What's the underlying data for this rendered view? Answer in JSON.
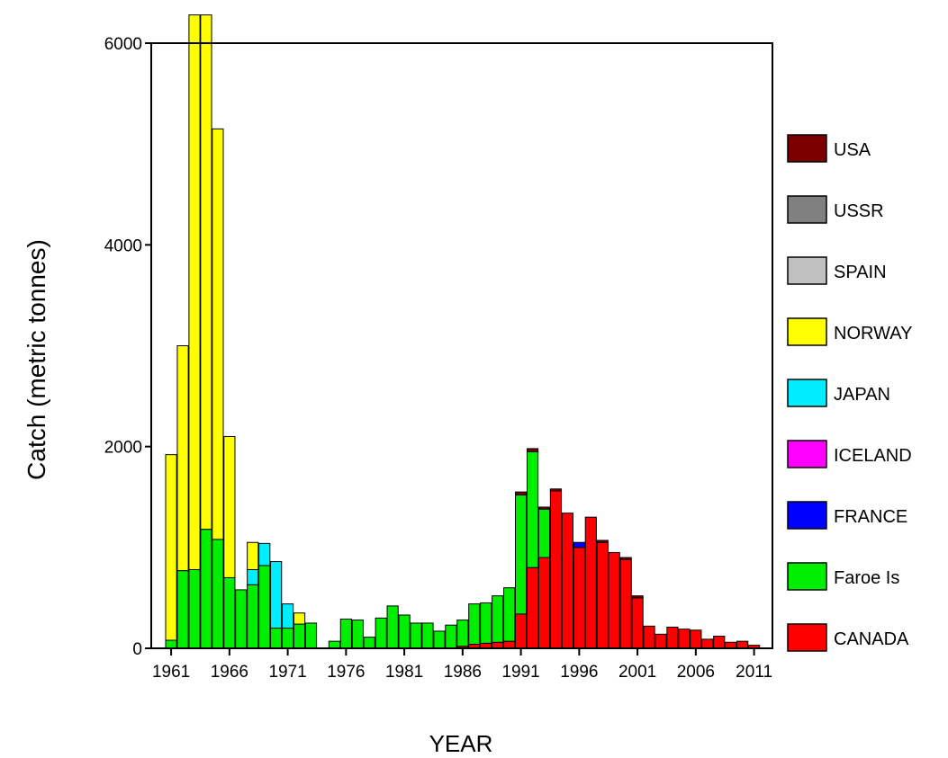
{
  "chart_data": {
    "type": "bar",
    "stacked": true,
    "xlabel": "YEAR",
    "ylabel": "Catch (metric tonnes)",
    "ylim": [
      0,
      6000
    ],
    "yticks": [
      0,
      2000,
      4000,
      6000
    ],
    "xticks": [
      1961,
      1966,
      1971,
      1976,
      1981,
      1986,
      1991,
      1996,
      2001,
      2006,
      2011
    ],
    "grid": false,
    "legend_position": "right",
    "categories": [
      1961,
      1962,
      1963,
      1964,
      1965,
      1966,
      1967,
      1968,
      1969,
      1970,
      1971,
      1972,
      1973,
      1974,
      1975,
      1976,
      1977,
      1978,
      1979,
      1980,
      1981,
      1982,
      1983,
      1984,
      1985,
      1986,
      1987,
      1988,
      1989,
      1990,
      1991,
      1992,
      1993,
      1994,
      1995,
      1996,
      1997,
      1998,
      1999,
      2000,
      2001,
      2002,
      2003,
      2004,
      2005,
      2006,
      2007,
      2008,
      2009,
      2010,
      2011
    ],
    "series": [
      {
        "name": "CANADA",
        "color": "#ff0000",
        "values": [
          0,
          0,
          0,
          0,
          0,
          0,
          0,
          0,
          0,
          0,
          0,
          0,
          0,
          0,
          0,
          0,
          0,
          0,
          0,
          0,
          0,
          0,
          0,
          0,
          0,
          20,
          40,
          50,
          60,
          70,
          340,
          800,
          900,
          1560,
          1340,
          1000,
          1300,
          1050,
          950,
          880,
          500,
          220,
          140,
          210,
          190,
          180,
          90,
          120,
          60,
          70,
          30
        ]
      },
      {
        "name": "Faroe Is",
        "color": "#00ee00",
        "values": [
          80,
          770,
          780,
          1180,
          1080,
          700,
          580,
          630,
          820,
          200,
          200,
          240,
          250,
          0,
          70,
          290,
          280,
          110,
          300,
          420,
          330,
          250,
          250,
          170,
          230,
          260,
          400,
          400,
          460,
          530,
          1180,
          1150,
          480,
          0,
          0,
          0,
          0,
          0,
          0,
          0,
          0,
          0,
          0,
          0,
          0,
          0,
          0,
          0,
          0,
          0,
          0
        ]
      },
      {
        "name": "FRANCE",
        "color": "#0000ff",
        "values": [
          0,
          0,
          0,
          0,
          0,
          0,
          0,
          0,
          0,
          0,
          0,
          0,
          0,
          0,
          0,
          0,
          0,
          0,
          0,
          0,
          0,
          0,
          0,
          0,
          0,
          0,
          0,
          0,
          0,
          0,
          0,
          0,
          0,
          0,
          0,
          50,
          0,
          0,
          0,
          0,
          0,
          0,
          0,
          0,
          0,
          0,
          0,
          0,
          0,
          0,
          0
        ]
      },
      {
        "name": "ICELAND",
        "color": "#ff00ff",
        "values": [
          0,
          0,
          0,
          0,
          0,
          0,
          0,
          0,
          0,
          0,
          0,
          0,
          0,
          0,
          0,
          0,
          0,
          0,
          0,
          0,
          0,
          0,
          0,
          0,
          0,
          0,
          0,
          0,
          0,
          0,
          0,
          0,
          0,
          0,
          0,
          0,
          0,
          0,
          0,
          0,
          0,
          0,
          0,
          0,
          0,
          0,
          0,
          0,
          0,
          0,
          0
        ]
      },
      {
        "name": "JAPAN",
        "color": "#00eeff",
        "values": [
          0,
          0,
          0,
          0,
          0,
          0,
          0,
          150,
          220,
          660,
          240,
          0,
          0,
          0,
          0,
          0,
          0,
          0,
          0,
          0,
          0,
          0,
          0,
          0,
          0,
          0,
          0,
          0,
          0,
          0,
          0,
          0,
          0,
          0,
          0,
          0,
          0,
          0,
          0,
          0,
          0,
          0,
          0,
          0,
          0,
          0,
          0,
          0,
          0,
          0,
          0
        ]
      },
      {
        "name": "NORWAY",
        "color": "#ffff00",
        "values": [
          1840,
          2230,
          5500,
          5100,
          4070,
          1400,
          0,
          270,
          0,
          0,
          0,
          110,
          0,
          0,
          0,
          0,
          0,
          0,
          0,
          0,
          0,
          0,
          0,
          0,
          0,
          0,
          0,
          0,
          0,
          0,
          0,
          0,
          0,
          0,
          0,
          0,
          0,
          0,
          0,
          0,
          0,
          0,
          0,
          0,
          0,
          0,
          0,
          0,
          0,
          0,
          0
        ]
      },
      {
        "name": "SPAIN",
        "color": "#c0c0c0",
        "values": [
          0,
          0,
          0,
          0,
          0,
          0,
          0,
          0,
          0,
          0,
          0,
          0,
          0,
          0,
          0,
          0,
          0,
          0,
          0,
          0,
          0,
          0,
          0,
          0,
          0,
          0,
          0,
          0,
          0,
          0,
          0,
          0,
          0,
          0,
          0,
          0,
          0,
          0,
          0,
          0,
          0,
          0,
          0,
          0,
          0,
          0,
          0,
          0,
          0,
          0,
          0
        ]
      },
      {
        "name": "USSR",
        "color": "#808080",
        "values": [
          0,
          0,
          0,
          0,
          0,
          0,
          0,
          0,
          0,
          0,
          0,
          0,
          0,
          0,
          0,
          0,
          0,
          0,
          0,
          0,
          0,
          0,
          0,
          0,
          0,
          0,
          0,
          0,
          0,
          0,
          0,
          0,
          0,
          0,
          0,
          0,
          0,
          0,
          0,
          0,
          0,
          0,
          0,
          0,
          0,
          0,
          0,
          0,
          0,
          0,
          0
        ]
      },
      {
        "name": "USA",
        "color": "#7a0000",
        "values": [
          0,
          0,
          0,
          0,
          0,
          0,
          0,
          0,
          0,
          0,
          0,
          0,
          0,
          0,
          0,
          0,
          0,
          0,
          0,
          0,
          0,
          0,
          0,
          0,
          0,
          0,
          0,
          0,
          0,
          0,
          30,
          30,
          20,
          20,
          0,
          0,
          0,
          20,
          0,
          20,
          20,
          0,
          0,
          0,
          0,
          0,
          0,
          0,
          0,
          0,
          0
        ]
      }
    ],
    "legend_order": [
      "USA",
      "USSR",
      "SPAIN",
      "NORWAY",
      "JAPAN",
      "ICELAND",
      "FRANCE",
      "Faroe Is",
      "CANADA"
    ]
  }
}
